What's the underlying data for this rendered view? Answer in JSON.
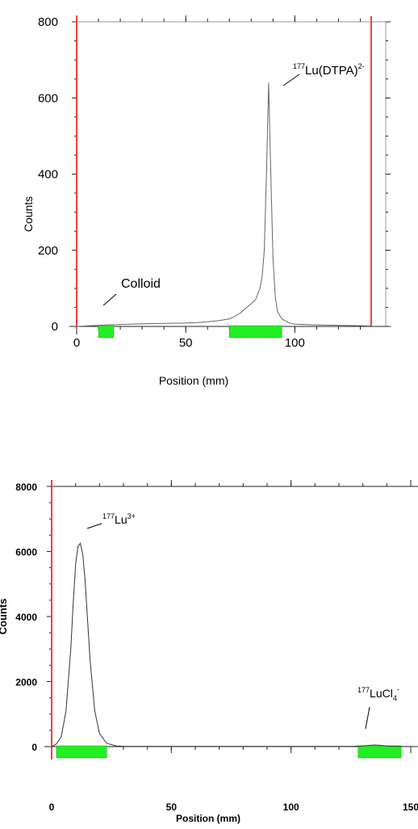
{
  "chart_data": [
    {
      "type": "line",
      "xlabel": "Position (mm)",
      "ylabel": "Counts",
      "xlim": [
        0,
        135
      ],
      "ylim": [
        0,
        800
      ],
      "x_ticks": [
        "0",
        "50",
        "100"
      ],
      "y_ticks": [
        "0",
        "200",
        "400",
        "600",
        "800"
      ],
      "series": [
        {
          "x": [
            0,
            10,
            20,
            30,
            40,
            50,
            55,
            60,
            65,
            70,
            72,
            75,
            78,
            80,
            82,
            84,
            85,
            86,
            87,
            88,
            89,
            90,
            91,
            92,
            94,
            97,
            100,
            110,
            120,
            130,
            135
          ],
          "values": [
            0,
            3,
            5,
            7,
            8,
            9,
            10,
            12,
            15,
            20,
            25,
            35,
            50,
            60,
            70,
            100,
            130,
            200,
            400,
            640,
            400,
            180,
            80,
            40,
            20,
            10,
            6,
            4,
            3,
            2,
            1
          ]
        }
      ],
      "regions": [
        {
          "x": [
            10,
            17
          ]
        },
        {
          "x": [
            70,
            94
          ]
        }
      ],
      "boundaries": [
        0,
        135
      ],
      "annotations": [
        {
          "text": "Colloid",
          "x": 13,
          "y": 5
        },
        {
          "text_sup": "177",
          "text": "Lu(DTPA)",
          "text_sup2": "2-",
          "x": 88,
          "y": 640
        }
      ]
    },
    {
      "type": "line",
      "xlabel": "Position (mm)",
      "ylabel": "Counts",
      "xlim": [
        0,
        155
      ],
      "ylim": [
        0,
        8000
      ],
      "x_ticks": [
        "0",
        "50",
        "100",
        "150"
      ],
      "y_ticks": [
        "0",
        "2000",
        "4000",
        "6000",
        "8000"
      ],
      "series": [
        {
          "x": [
            0,
            2,
            4,
            6,
            8,
            9,
            10,
            11,
            12,
            13,
            14,
            15,
            16,
            18,
            20,
            23,
            27,
            30,
            50,
            100,
            125,
            130,
            133,
            135,
            137,
            140,
            145,
            155
          ],
          "values": [
            0,
            80,
            300,
            1100,
            3000,
            4400,
            5600,
            6150,
            6250,
            5900,
            5100,
            3900,
            2700,
            1100,
            400,
            100,
            20,
            10,
            5,
            5,
            5,
            20,
            40,
            50,
            40,
            20,
            5,
            0
          ]
        }
      ],
      "regions": [
        {
          "x": [
            2,
            23
          ]
        },
        {
          "x": [
            128,
            146
          ]
        }
      ],
      "boundaries": [
        0
      ],
      "annotations": [
        {
          "text_sup": "177",
          "text": "Lu",
          "text_sup2": "3+",
          "x": 12,
          "y": 6250
        },
        {
          "text_sup": "177",
          "text": "LuCl",
          "text_sub": "4",
          "text_sup2": "-",
          "x": 135,
          "y": 50
        }
      ]
    }
  ]
}
